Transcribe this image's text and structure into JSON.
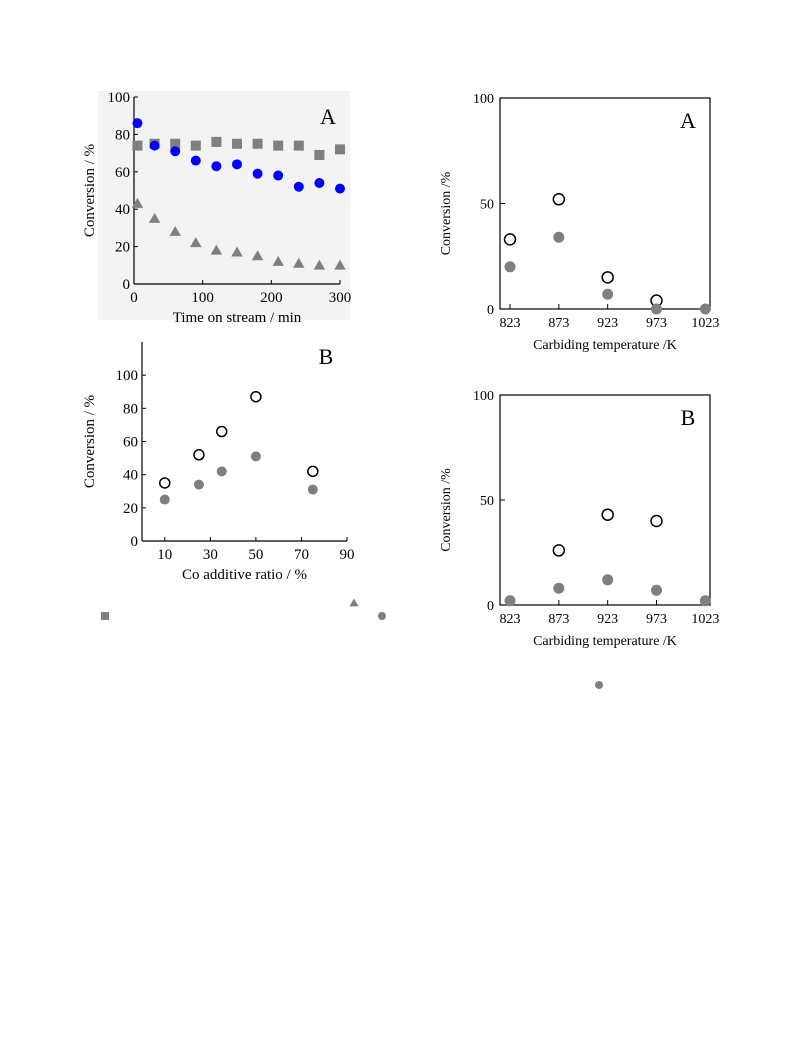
{
  "colors": {
    "gray": "#7f7f7f",
    "blue": "#0000ff",
    "axis": "#000000",
    "panel_bg": "#f3f3f3"
  },
  "chart_data": [
    {
      "id": "left-A",
      "type": "scatter",
      "panel_label": "A",
      "xlabel": "Time on stream / min",
      "ylabel": "Conversion / %",
      "xlim": [
        0,
        300
      ],
      "ylim": [
        0,
        100
      ],
      "xticks": [
        0,
        100,
        200,
        300
      ],
      "yticks": [
        0,
        20,
        40,
        60,
        80,
        100
      ],
      "grid": false,
      "series": [
        {
          "marker": "square",
          "color": "#7f7f7f",
          "x": [
            5,
            30,
            60,
            90,
            120,
            150,
            180,
            210,
            240,
            270,
            300
          ],
          "y": [
            74,
            75,
            75,
            74,
            76,
            75,
            75,
            74,
            74,
            69,
            72
          ]
        },
        {
          "marker": "circle",
          "color": "#0000ff",
          "x": [
            5,
            30,
            60,
            90,
            120,
            150,
            180,
            210,
            240,
            270,
            300
          ],
          "y": [
            86,
            74,
            71,
            66,
            63,
            64,
            59,
            58,
            52,
            54,
            51
          ]
        },
        {
          "marker": "triangle",
          "color": "#7f7f7f",
          "x": [
            5,
            30,
            60,
            90,
            120,
            150,
            180,
            210,
            240,
            270,
            300
          ],
          "y": [
            43,
            35,
            28,
            22,
            18,
            17,
            15,
            12,
            11,
            10,
            10
          ]
        }
      ]
    },
    {
      "id": "left-B",
      "type": "scatter",
      "panel_label": "B",
      "xlabel": "Co additive ratio / %",
      "ylabel": "Conversion / %",
      "xlim": [
        0,
        90
      ],
      "ylim": [
        0,
        120
      ],
      "xticks": [
        10,
        30,
        50,
        70,
        90
      ],
      "yticks": [
        0,
        20,
        40,
        60,
        80,
        100
      ],
      "grid": false,
      "series": [
        {
          "marker": "open-circle",
          "color": "#000000",
          "x": [
            10,
            25,
            35,
            50,
            75
          ],
          "y": [
            35,
            52,
            66,
            87,
            42
          ]
        },
        {
          "marker": "circle",
          "color": "#7f7f7f",
          "x": [
            10,
            25,
            35,
            50,
            75
          ],
          "y": [
            25,
            34,
            42,
            51,
            31
          ]
        }
      ]
    },
    {
      "id": "right-A",
      "type": "scatter",
      "panel_label": "A",
      "xlabel": "Carbiding temperature /K",
      "ylabel": "Conversion /%",
      "categories": [
        "823",
        "873",
        "923",
        "973",
        "1023"
      ],
      "ylim": [
        0,
        100
      ],
      "yticks": [
        0,
        50,
        100
      ],
      "grid": false,
      "series": [
        {
          "marker": "open-circle",
          "color": "#000000",
          "x": [
            "823",
            "873",
            "923",
            "973"
          ],
          "y": [
            33,
            52,
            15,
            4
          ]
        },
        {
          "marker": "circle",
          "color": "#7f7f7f",
          "x": [
            "823",
            "873",
            "923",
            "973",
            "1023"
          ],
          "y": [
            20,
            34,
            7,
            0,
            0
          ]
        }
      ]
    },
    {
      "id": "right-B",
      "type": "scatter",
      "panel_label": "B",
      "xlabel": "Carbiding temperature /K",
      "ylabel": "Conversion /%",
      "categories": [
        "823",
        "873",
        "923",
        "973",
        "1023"
      ],
      "ylim": [
        0,
        100
      ],
      "yticks": [
        0,
        50,
        100
      ],
      "grid": false,
      "series": [
        {
          "marker": "open-circle",
          "color": "#000000",
          "x": [
            "873",
            "923",
            "973"
          ],
          "y": [
            26,
            43,
            40
          ]
        },
        {
          "marker": "circle",
          "color": "#7f7f7f",
          "x": [
            "823",
            "873",
            "923",
            "973",
            "1023"
          ],
          "y": [
            2,
            8,
            12,
            7,
            2
          ]
        }
      ]
    }
  ],
  "legend_symbols": [
    {
      "name": "legend-square-icon",
      "marker": "square",
      "color": "#7f7f7f"
    },
    {
      "name": "legend-triangle-icon",
      "marker": "triangle",
      "color": "#7f7f7f"
    },
    {
      "name": "legend-circle-icon",
      "marker": "circle",
      "color": "#7f7f7f"
    },
    {
      "name": "legend-circle-icon-2",
      "marker": "circle",
      "color": "#7f7f7f"
    }
  ]
}
